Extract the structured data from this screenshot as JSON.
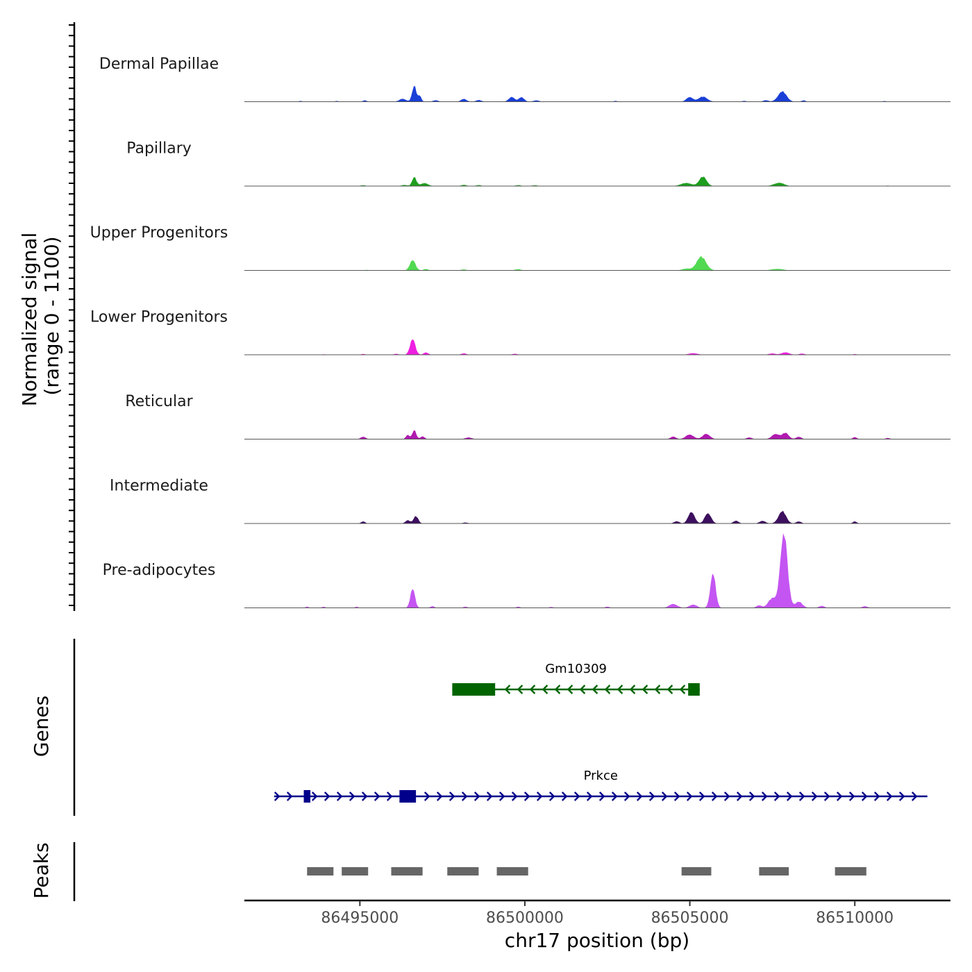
{
  "chart_data": {
    "type": "area",
    "title": "",
    "chromosome": "chr17",
    "xlabel": "chr17 position (bp)",
    "xlim": [
      86491500,
      86512900
    ],
    "x_ticks": [
      86495000,
      86500000,
      86505000,
      86510000
    ],
    "x_tick_labels": [
      "86495000",
      "86500000",
      "86505000",
      "86510000"
    ],
    "signal_axis_label": {
      "line1": "Normalized signal",
      "line2": "(range 0 - 1100)"
    },
    "signal_range": [
      0,
      1100
    ],
    "genes_axis_label": "Genes",
    "peaks_axis_label": "Peaks",
    "series": [
      {
        "name": "Dermal Papillae",
        "color": "#1a3fd6",
        "peaks": [
          {
            "center": 86493200,
            "height": 12,
            "width": 50
          },
          {
            "center": 86494300,
            "height": 12,
            "width": 50
          },
          {
            "center": 86495150,
            "height": 20,
            "width": 60
          },
          {
            "center": 86496300,
            "height": 45,
            "width": 100
          },
          {
            "center": 86496650,
            "height": 230,
            "width": 65
          },
          {
            "center": 86496820,
            "height": 90,
            "width": 45
          },
          {
            "center": 86497300,
            "height": 22,
            "width": 80
          },
          {
            "center": 86498150,
            "height": 40,
            "width": 85
          },
          {
            "center": 86498600,
            "height": 25,
            "width": 80
          },
          {
            "center": 86499600,
            "height": 70,
            "width": 90
          },
          {
            "center": 86499900,
            "height": 70,
            "width": 80
          },
          {
            "center": 86500350,
            "height": 20,
            "width": 90
          },
          {
            "center": 86502750,
            "height": 12,
            "width": 50
          },
          {
            "center": 86505000,
            "height": 70,
            "width": 100
          },
          {
            "center": 86505400,
            "height": 75,
            "width": 130
          },
          {
            "center": 86506650,
            "height": 14,
            "width": 60
          },
          {
            "center": 86507300,
            "height": 22,
            "width": 80
          },
          {
            "center": 86507800,
            "height": 150,
            "width": 130
          },
          {
            "center": 86508450,
            "height": 20,
            "width": 60
          },
          {
            "center": 86510900,
            "height": 10,
            "width": 50
          }
        ]
      },
      {
        "name": "Papillary",
        "color": "#1e9e1e",
        "peaks": [
          {
            "center": 86495100,
            "height": 12,
            "width": 70
          },
          {
            "center": 86496350,
            "height": 18,
            "width": 80
          },
          {
            "center": 86496650,
            "height": 130,
            "width": 65
          },
          {
            "center": 86496950,
            "height": 45,
            "width": 110
          },
          {
            "center": 86498150,
            "height": 18,
            "width": 80
          },
          {
            "center": 86498600,
            "height": 14,
            "width": 80
          },
          {
            "center": 86499800,
            "height": 14,
            "width": 80
          },
          {
            "center": 86500300,
            "height": 12,
            "width": 80
          },
          {
            "center": 86504900,
            "height": 45,
            "width": 170
          },
          {
            "center": 86505400,
            "height": 140,
            "width": 110
          },
          {
            "center": 86507700,
            "height": 50,
            "width": 150
          },
          {
            "center": 86511000,
            "height": 8,
            "width": 50
          }
        ]
      },
      {
        "name": "Upper Progenitors",
        "color": "#52d952",
        "peaks": [
          {
            "center": 86495200,
            "height": 8,
            "width": 60
          },
          {
            "center": 86496600,
            "height": 150,
            "width": 85
          },
          {
            "center": 86497000,
            "height": 20,
            "width": 70
          },
          {
            "center": 86498150,
            "height": 14,
            "width": 80
          },
          {
            "center": 86499800,
            "height": 18,
            "width": 90
          },
          {
            "center": 86504900,
            "height": 25,
            "width": 130
          },
          {
            "center": 86505350,
            "height": 200,
            "width": 145
          },
          {
            "center": 86507650,
            "height": 24,
            "width": 170
          },
          {
            "center": 86509800,
            "height": 6,
            "width": 60
          }
        ]
      },
      {
        "name": "Lower Progenitors",
        "color": "#ee1fe0",
        "peaks": [
          {
            "center": 86493900,
            "height": 8,
            "width": 60
          },
          {
            "center": 86495100,
            "height": 12,
            "width": 60
          },
          {
            "center": 86496100,
            "height": 14,
            "width": 70
          },
          {
            "center": 86496600,
            "height": 230,
            "width": 80
          },
          {
            "center": 86497000,
            "height": 35,
            "width": 70
          },
          {
            "center": 86498150,
            "height": 20,
            "width": 80
          },
          {
            "center": 86499700,
            "height": 14,
            "width": 80
          },
          {
            "center": 86505100,
            "height": 25,
            "width": 130
          },
          {
            "center": 86507500,
            "height": 20,
            "width": 100
          },
          {
            "center": 86507900,
            "height": 35,
            "width": 120
          },
          {
            "center": 86508400,
            "height": 18,
            "width": 80
          },
          {
            "center": 86510000,
            "height": 10,
            "width": 60
          }
        ]
      },
      {
        "name": "Reticular",
        "color": "#b01ab0",
        "peaks": [
          {
            "center": 86495100,
            "height": 35,
            "width": 75
          },
          {
            "center": 86496450,
            "height": 65,
            "width": 55
          },
          {
            "center": 86496650,
            "height": 130,
            "width": 60
          },
          {
            "center": 86496900,
            "height": 45,
            "width": 60
          },
          {
            "center": 86498300,
            "height": 25,
            "width": 100
          },
          {
            "center": 86504500,
            "height": 40,
            "width": 80
          },
          {
            "center": 86505000,
            "height": 70,
            "width": 120
          },
          {
            "center": 86505500,
            "height": 80,
            "width": 110
          },
          {
            "center": 86506800,
            "height": 25,
            "width": 80
          },
          {
            "center": 86507600,
            "height": 80,
            "width": 110
          },
          {
            "center": 86507900,
            "height": 90,
            "width": 100
          },
          {
            "center": 86508300,
            "height": 35,
            "width": 80
          },
          {
            "center": 86510000,
            "height": 30,
            "width": 60
          },
          {
            "center": 86511000,
            "height": 18,
            "width": 60
          }
        ]
      },
      {
        "name": "Intermediate",
        "color": "#3d0f5e",
        "peaks": [
          {
            "center": 86495100,
            "height": 30,
            "width": 60
          },
          {
            "center": 86496450,
            "height": 50,
            "width": 70
          },
          {
            "center": 86496700,
            "height": 110,
            "width": 70
          },
          {
            "center": 86498200,
            "height": 14,
            "width": 80
          },
          {
            "center": 86504600,
            "height": 35,
            "width": 80
          },
          {
            "center": 86505050,
            "height": 180,
            "width": 95
          },
          {
            "center": 86505550,
            "height": 160,
            "width": 95
          },
          {
            "center": 86506400,
            "height": 40,
            "width": 80
          },
          {
            "center": 86507200,
            "height": 40,
            "width": 90
          },
          {
            "center": 86507800,
            "height": 180,
            "width": 115
          },
          {
            "center": 86508300,
            "height": 30,
            "width": 80
          },
          {
            "center": 86510000,
            "height": 30,
            "width": 60
          }
        ]
      },
      {
        "name": "Pre-adipocytes",
        "color": "#c455f2",
        "peaks": [
          {
            "center": 86493400,
            "height": 18,
            "width": 50
          },
          {
            "center": 86493900,
            "height": 18,
            "width": 50
          },
          {
            "center": 86494900,
            "height": 18,
            "width": 50
          },
          {
            "center": 86496600,
            "height": 280,
            "width": 70
          },
          {
            "center": 86497200,
            "height": 25,
            "width": 60
          },
          {
            "center": 86498200,
            "height": 18,
            "width": 60
          },
          {
            "center": 86499800,
            "height": 18,
            "width": 60
          },
          {
            "center": 86500800,
            "height": 14,
            "width": 60
          },
          {
            "center": 86502500,
            "height": 20,
            "width": 60
          },
          {
            "center": 86504500,
            "height": 60,
            "width": 120
          },
          {
            "center": 86505100,
            "height": 50,
            "width": 110
          },
          {
            "center": 86505700,
            "height": 520,
            "width": 80
          },
          {
            "center": 86507100,
            "height": 40,
            "width": 80
          },
          {
            "center": 86507500,
            "height": 140,
            "width": 120
          },
          {
            "center": 86507850,
            "height": 1100,
            "width": 110
          },
          {
            "center": 86508300,
            "height": 90,
            "width": 110
          },
          {
            "center": 86509000,
            "height": 30,
            "width": 80
          },
          {
            "center": 86510300,
            "height": 25,
            "width": 80
          }
        ]
      }
    ],
    "genes": [
      {
        "name": "Gm10309",
        "color": "#006400",
        "strand": "-",
        "start": 86497800,
        "end": 86505300,
        "exons": [
          [
            86497800,
            86499100
          ],
          [
            86504950,
            86505300
          ]
        ]
      },
      {
        "name": "Prkce",
        "color": "#00008b",
        "strand": "+",
        "start": 86492400,
        "end": 86512200,
        "exons": [
          [
            86493300,
            86493500
          ],
          [
            86496200,
            86496700
          ]
        ]
      }
    ],
    "peak_regions": [
      [
        86493400,
        86494200
      ],
      [
        86494450,
        86495250
      ],
      [
        86495950,
        86496900
      ],
      [
        86497650,
        86498600
      ],
      [
        86499150,
        86500100
      ],
      [
        86504750,
        86505650
      ],
      [
        86507100,
        86508000
      ],
      [
        86509400,
        86510350
      ]
    ],
    "peak_color": "#666666"
  }
}
